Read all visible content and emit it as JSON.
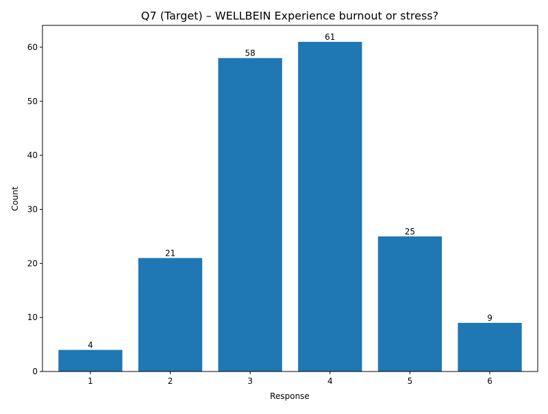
{
  "chart_data": {
    "type": "bar",
    "title": "Q7 (Target) – WELLBEIN Experience burnout or stress?",
    "xlabel": "Response",
    "ylabel": "Count",
    "categories": [
      "1",
      "2",
      "3",
      "4",
      "5",
      "6"
    ],
    "values": [
      4,
      21,
      58,
      61,
      25,
      9
    ],
    "ylim": [
      0,
      64.05
    ],
    "yticks": [
      0,
      10,
      20,
      30,
      40,
      50,
      60
    ],
    "grid": false,
    "legend": "none",
    "bar_color": "#1f77b4",
    "data_labels": true
  }
}
